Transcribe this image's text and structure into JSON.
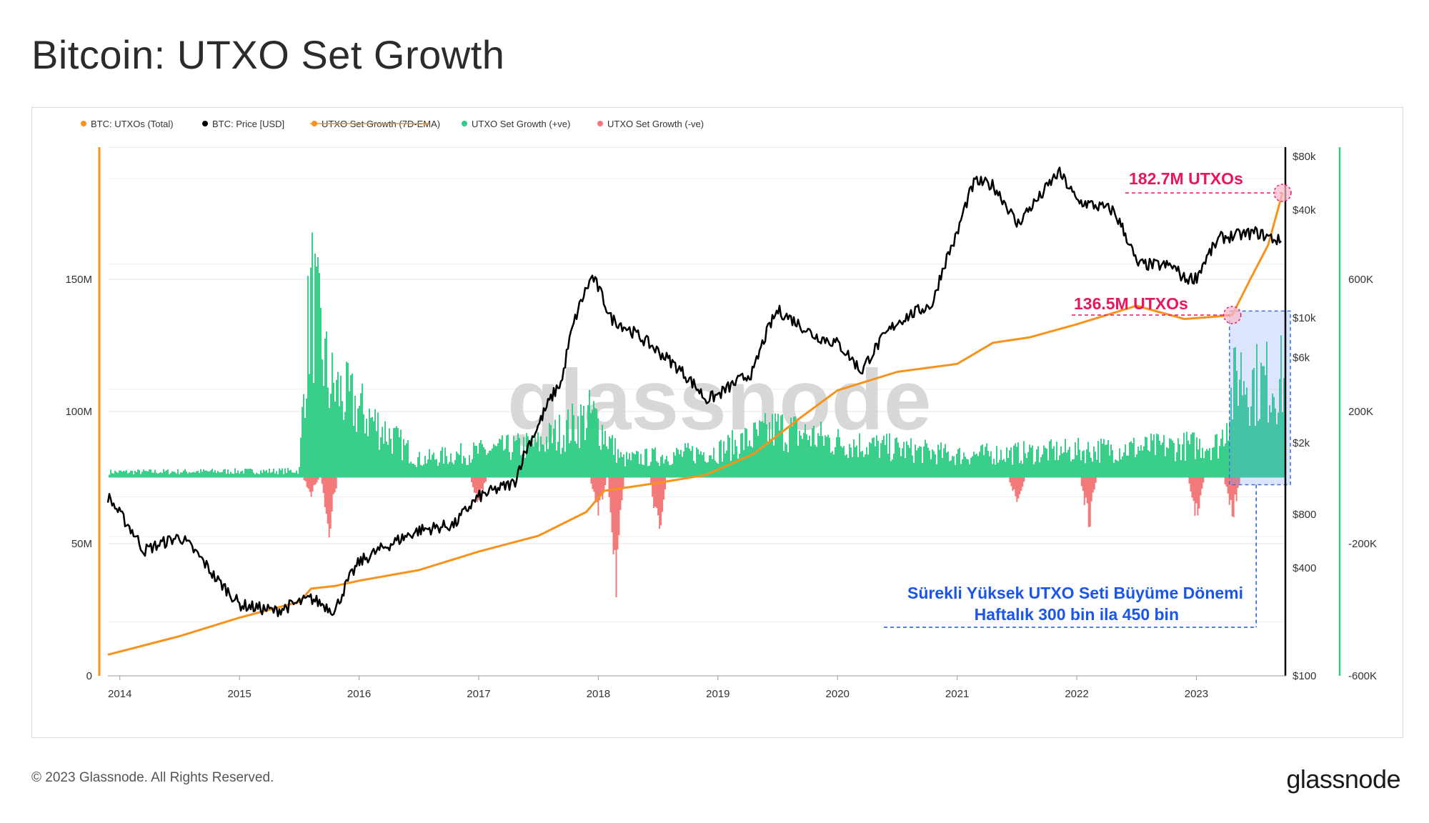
{
  "title": "Bitcoin: UTXO Set Growth",
  "footer": {
    "copyright": "© 2023 Glassnode. All Rights Reserved.",
    "brand": "glassnode"
  },
  "chart_data": {
    "type": "line",
    "watermark": "glassnode",
    "legend": [
      {
        "name": "BTC: UTXOs (Total)",
        "color": "#f7931a",
        "struck": false
      },
      {
        "name": "BTC: Price [USD]",
        "color": "#000000",
        "struck": false
      },
      {
        "name": "UTXO Set Growth (7D-EMA)",
        "color": "#f7931a",
        "struck": true
      },
      {
        "name": "UTXO Set Growth (+ve)",
        "color": "#2ecc85",
        "struck": false
      },
      {
        "name": "UTXO Set Growth (-ve)",
        "color": "#f27a7a",
        "struck": false
      }
    ],
    "x_ticks": [
      "2014",
      "2015",
      "2016",
      "2017",
      "2018",
      "2019",
      "2020",
      "2021",
      "2022",
      "2023"
    ],
    "x_range": [
      2013.9,
      2023.75
    ],
    "left_axis": {
      "ticks": [
        "0",
        "50M",
        "100M",
        "150M"
      ],
      "range": [
        0,
        200000000
      ],
      "color": "#f7931a"
    },
    "price_axis": {
      "ticks": [
        "$100",
        "$400",
        "$800",
        "$2k",
        "$6k",
        "$10k",
        "$40k",
        "$80k"
      ],
      "log": true,
      "range": [
        100,
        90000
      ]
    },
    "growth_axis": {
      "ticks": [
        "-600K",
        "-200K",
        "200K",
        "600K"
      ],
      "range": [
        -600000,
        1000000
      ],
      "color": "#2ecc85"
    },
    "series": [
      {
        "name": "BTC: UTXOs (Total)",
        "color": "#f7931a",
        "x": [
          2013.9,
          2014.5,
          2015.0,
          2015.5,
          2015.6,
          2015.8,
          2016.0,
          2016.5,
          2017.0,
          2017.5,
          2017.9,
          2018.05,
          2018.5,
          2018.9,
          2019.3,
          2019.7,
          2020.0,
          2020.5,
          2021.0,
          2021.3,
          2021.6,
          2022.0,
          2022.5,
          2022.9,
          2023.2,
          2023.3,
          2023.45,
          2023.6,
          2023.72
        ],
        "values": [
          8000000,
          15000000,
          22000000,
          28000000,
          33000000,
          34000000,
          36000000,
          40000000,
          47000000,
          53000000,
          62000000,
          70000000,
          73000000,
          76000000,
          84000000,
          98000000,
          108000000,
          115000000,
          118000000,
          126000000,
          128000000,
          133000000,
          140000000,
          135000000,
          136000000,
          136500000,
          150000000,
          163000000,
          182700000
        ]
      },
      {
        "name": "BTC: Price [USD]",
        "color": "#000000",
        "x": [
          2013.9,
          2014.0,
          2014.2,
          2014.5,
          2014.8,
          2015.0,
          2015.3,
          2015.6,
          2015.8,
          2016.0,
          2016.5,
          2016.8,
          2017.0,
          2017.3,
          2017.5,
          2017.7,
          2017.95,
          2018.1,
          2018.5,
          2018.9,
          2019.0,
          2019.3,
          2019.5,
          2019.8,
          2020.0,
          2020.2,
          2020.5,
          2020.8,
          2021.0,
          2021.15,
          2021.3,
          2021.5,
          2021.7,
          2021.85,
          2022.0,
          2022.3,
          2022.5,
          2022.8,
          2022.9,
          2023.0,
          2023.2,
          2023.5,
          2023.72
        ],
        "values": [
          1000,
          800,
          500,
          600,
          350,
          250,
          230,
          270,
          230,
          430,
          650,
          700,
          1000,
          1200,
          2500,
          4500,
          17000,
          10000,
          6500,
          3500,
          3700,
          5000,
          11000,
          8000,
          7200,
          5000,
          9500,
          12000,
          29000,
          58000,
          55000,
          33000,
          48000,
          65000,
          45000,
          40000,
          20000,
          19500,
          16500,
          16800,
          28000,
          30000,
          26500
        ]
      },
      {
        "name": "UTXO Set Growth (+ve)",
        "color": "#2ecc85",
        "x": [
          2013.9,
          2015.5,
          2015.55,
          2015.6,
          2015.75,
          2016.5,
          2017.5,
          2017.95,
          2018.2,
          2019.0,
          2019.5,
          2020.0,
          2021.0,
          2022.0,
          2023.2,
          2023.35,
          2023.5,
          2023.72
        ],
        "values": [
          25000,
          30000,
          500000,
          820000,
          420000,
          80000,
          150000,
          280000,
          80000,
          120000,
          220000,
          160000,
          100000,
          120000,
          150000,
          480000,
          420000,
          440000
        ]
      },
      {
        "name": "UTXO Set Growth (-ve)",
        "color": "#f27a7a",
        "x": [
          2015.6,
          2015.75,
          2017.0,
          2018.0,
          2018.15,
          2018.5,
          2021.5,
          2022.1,
          2023.0,
          2023.3
        ],
        "values": [
          -60000,
          -200000,
          -100000,
          -150000,
          -380000,
          -220000,
          -100000,
          -180000,
          -150000,
          -150000
        ]
      }
    ],
    "annotations": [
      {
        "text": "182.7M UTXOs",
        "x": 2023.72,
        "y": 182700000,
        "color": "#e8175d"
      },
      {
        "text": "136.5M UTXOs",
        "x": 2023.3,
        "y": 136500000,
        "color": "#e8175d"
      },
      {
        "text": "Sürekli Yüksek UTXO Seti Büyüme Dönemi",
        "color": "#1a56e8"
      },
      {
        "text": "Haftalık 300 bin ila 450 bin",
        "color": "#1a56e8"
      }
    ],
    "highlight_period": {
      "x_start": 2023.3,
      "x_end": 2023.75,
      "growth_range": [
        300000,
        450000
      ]
    },
    "grid": true
  }
}
